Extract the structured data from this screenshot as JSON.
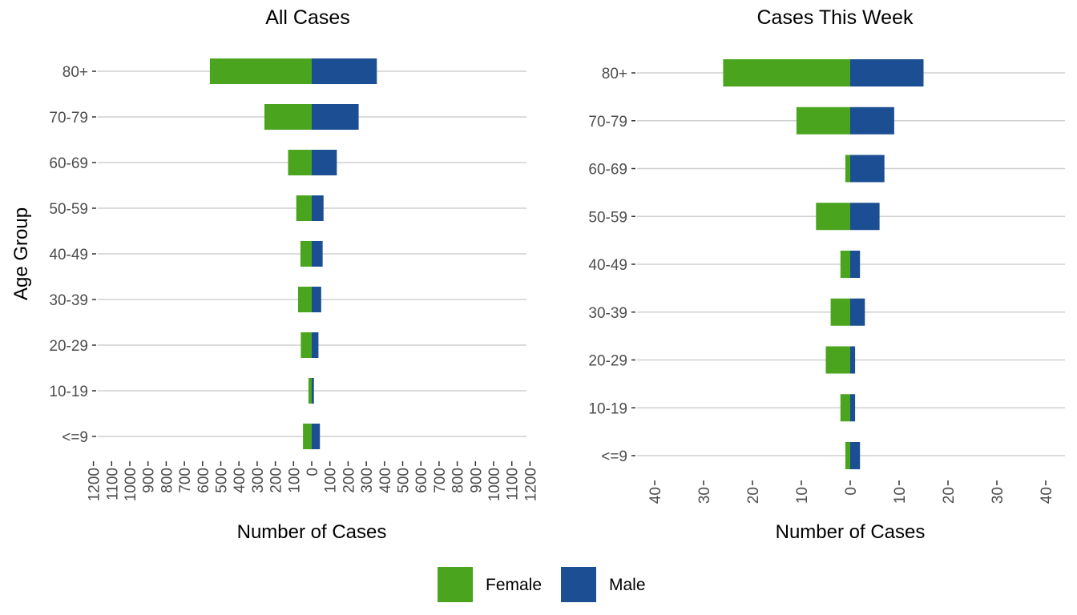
{
  "chart_data": [
    {
      "type": "bar",
      "orientation": "horizontal",
      "layout": "population-pyramid",
      "title": "All Cases",
      "xlabel": "Number of Cases",
      "ylabel": "Age Group",
      "categories": [
        "<=9",
        "10-19",
        "20-29",
        "30-39",
        "40-49",
        "50-59",
        "60-69",
        "70-79",
        "80+"
      ],
      "series": [
        {
          "name": "Female",
          "values": [
            48,
            18,
            60,
            75,
            62,
            85,
            130,
            260,
            560
          ]
        },
        {
          "name": "Male",
          "values": [
            45,
            12,
            37,
            52,
            60,
            65,
            138,
            258,
            358
          ]
        }
      ],
      "xlim": [
        -1200,
        1200
      ],
      "xticks": [
        "1200",
        "1100",
        "1000",
        "900",
        "800",
        "700",
        "600",
        "500",
        "400",
        "300",
        "200",
        "100",
        "0",
        "100",
        "200",
        "300",
        "400",
        "500",
        "600",
        "700",
        "800",
        "900",
        "1000",
        "1100",
        "1200"
      ],
      "grid": "horizontal"
    },
    {
      "type": "bar",
      "orientation": "horizontal",
      "layout": "population-pyramid",
      "title": "Cases This Week",
      "xlabel": "Number of Cases",
      "ylabel": "",
      "categories": [
        "<=9",
        "10-19",
        "20-29",
        "30-39",
        "40-49",
        "50-59",
        "60-69",
        "70-79",
        "80+"
      ],
      "series": [
        {
          "name": "Female",
          "values": [
            1,
            2,
            5,
            4,
            2,
            7,
            1,
            11,
            26
          ]
        },
        {
          "name": "Male",
          "values": [
            2,
            1,
            1,
            3,
            2,
            6,
            7,
            9,
            15
          ]
        }
      ],
      "xlim": [
        -40,
        40
      ],
      "xticks": [
        "40",
        "30",
        "20",
        "10",
        "0",
        "10",
        "20",
        "30",
        "40"
      ],
      "grid": "horizontal"
    }
  ],
  "legend": {
    "placement": "bottom",
    "items": [
      {
        "label": "Female",
        "color": "#4aa41e"
      },
      {
        "label": "Male",
        "color": "#1b4e92"
      }
    ]
  },
  "colors": {
    "female": "#4aa41e",
    "male": "#1b4e92",
    "grid": "#d0d0d0",
    "tick_text": "#4d4d4d"
  }
}
